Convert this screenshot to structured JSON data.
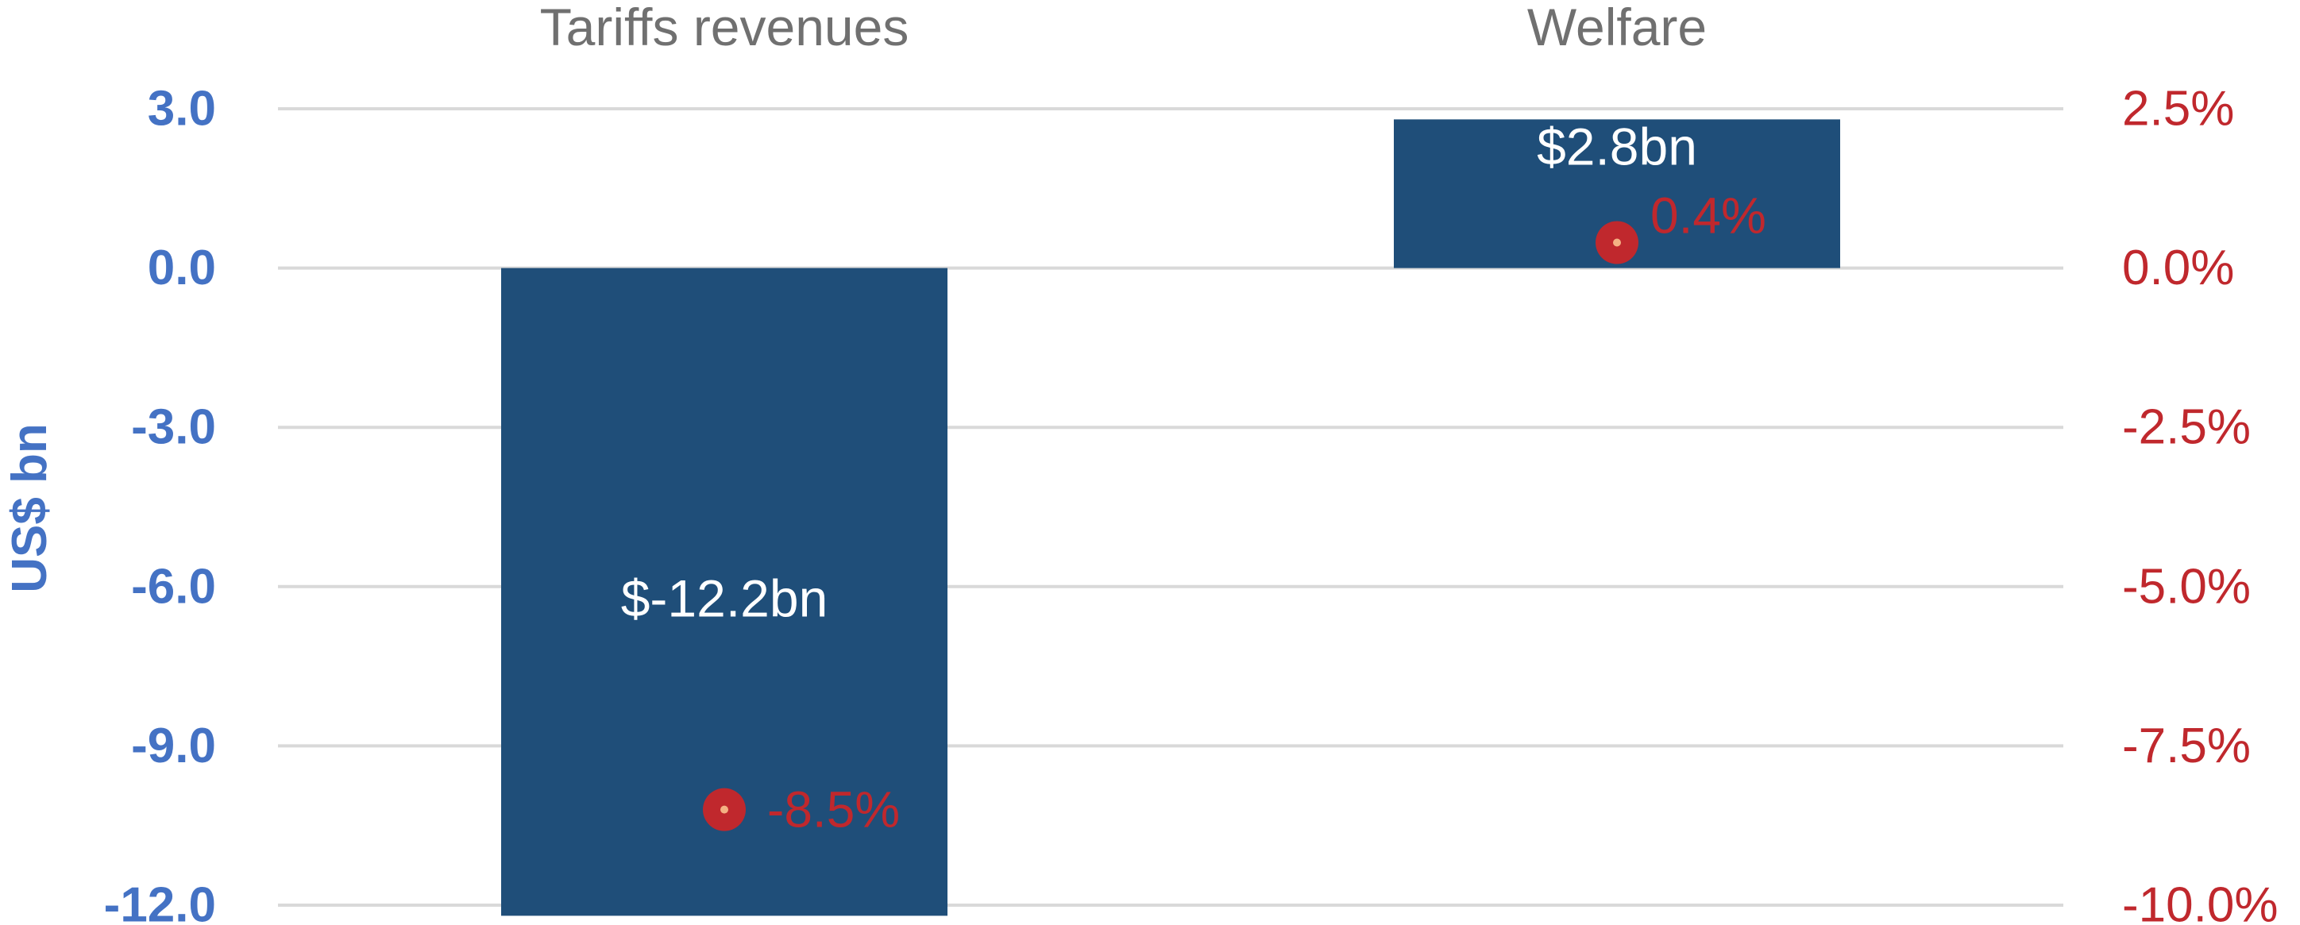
{
  "chart_data": {
    "type": "bar",
    "categories": [
      "Tariffs revenues",
      "Welfare"
    ],
    "series": [
      {
        "values": [
          -12.2,
          2.8
        ],
        "labels": [
          "$-12.2bn",
          "$2.8bn"
        ],
        "axis": "left",
        "color": "#1F4E79"
      },
      {
        "type": "scatter",
        "values": [
          -8.5,
          0.4
        ],
        "labels": [
          "-8.5%",
          "0.4%"
        ],
        "axis": "right",
        "color": "#C0282D",
        "marker_center_color": "#F4B183"
      }
    ],
    "left_axis": {
      "label": "US$ bn",
      "ylim": [
        -12.0,
        3.0
      ],
      "ticks": [
        "3.0",
        "0.0",
        "-3.0",
        "-6.0",
        "-9.0",
        "-12.0"
      ],
      "tick_values": [
        3.0,
        0.0,
        -3.0,
        -6.0,
        -9.0,
        -12.0
      ],
      "color": "#4472C4"
    },
    "right_axis": {
      "label": "",
      "ylim": [
        -10.0,
        2.5
      ],
      "ticks": [
        "2.5%",
        "0.0%",
        "-2.5%",
        "-5.0%",
        "-7.5%",
        "-10.0%"
      ],
      "tick_values": [
        2.5,
        0.0,
        -2.5,
        -5.0,
        -7.5,
        -10.0
      ],
      "color": "#C0282D"
    },
    "category_label_position": "top",
    "grid": true,
    "title": "",
    "xlabel": ""
  }
}
